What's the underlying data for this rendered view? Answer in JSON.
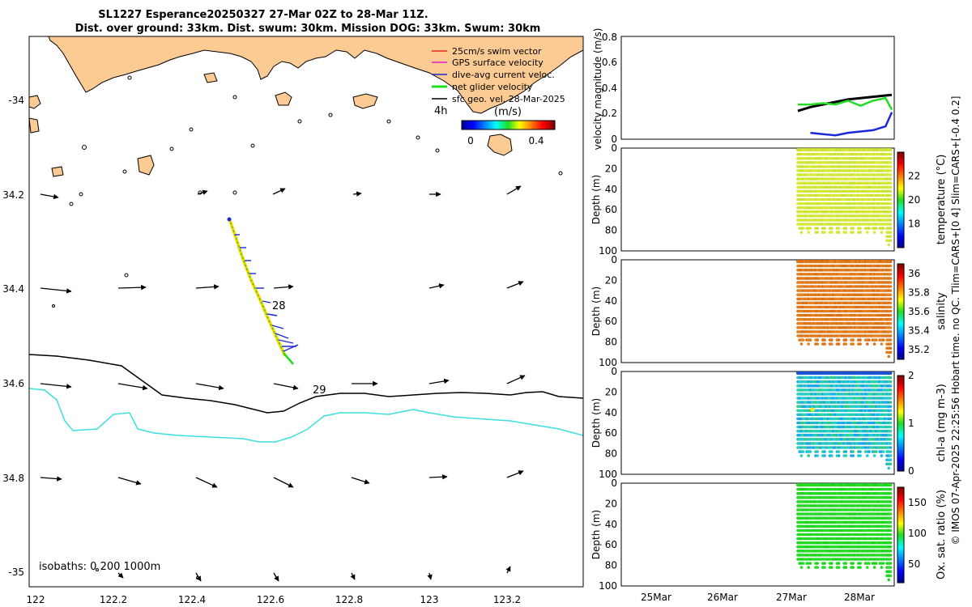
{
  "title": {
    "line1": "SL1227 Esperance20250327 27-Mar 02Z to 28-Mar 11Z.",
    "line2": "Dist. over ground: 33km. Dist. swum: 30km. Mission DOG: 33km. Swum: 30km"
  },
  "map": {
    "lon_ticks": [
      "122",
      "122.2",
      "122.4",
      "122.6",
      "122.8",
      "123",
      "123.2"
    ],
    "lat_ticks": [
      "-34",
      "34.2",
      "34.4",
      "34.6",
      "34.8",
      "-35"
    ],
    "legend": [
      {
        "label": "25cm/s swim vector",
        "color": "#e8281c"
      },
      {
        "label": "GPS surface velocity",
        "color": "#e81cc8"
      },
      {
        "label": "dive-avg current veloc.",
        "color": "#1c28d8"
      },
      {
        "label": "net glider velocity",
        "color": "#22dd22"
      },
      {
        "label": "sfc geo. vel. 28-Mar-2025",
        "color": "#000000"
      }
    ],
    "colorbar": {
      "label": "(m/s)",
      "tick_low": "0",
      "tick_high": "0.4",
      "time_label": "4h"
    },
    "day_labels": [
      "28",
      "29"
    ],
    "isobaths_label": "isobaths: 0   200  1000m",
    "colors": {
      "land": "#fccb93",
      "isobath_200": "#000000",
      "isobath_1000": "#3cdede"
    }
  },
  "panels": {
    "velocity": {
      "ylabel": "velocity magnitude (m/s)",
      "yticks": [
        "0",
        "0.2",
        "0.4",
        "0.6",
        "0.8"
      ]
    },
    "temperature": {
      "ylabel": "Depth (m)",
      "cb_label": "temperature (°C)",
      "cb_ticks": [
        "22",
        "20",
        "18"
      ]
    },
    "salinity": {
      "ylabel": "Depth (m)",
      "cb_label": "salinity",
      "cb_ticks": [
        "36",
        "35.8",
        "35.6",
        "35.4",
        "35.2"
      ]
    },
    "chla": {
      "ylabel": "Depth (m)",
      "cb_label": "chl-a (mg m-3)",
      "cb_ticks": [
        "2",
        "1",
        "0"
      ]
    },
    "oxygen": {
      "ylabel": "Depth (m)",
      "cb_label": "Ox. sat. ratio (%)",
      "cb_ticks": [
        "150",
        "100",
        "50"
      ]
    },
    "depth_ticks": [
      "0",
      "20",
      "40",
      "60",
      "80",
      "100"
    ],
    "date_ticks": [
      "25Mar",
      "26Mar",
      "27Mar",
      "28Mar"
    ]
  },
  "credit": "© IMOS 07-Apr-2025 22:25:56 Hobart time. no QC. Tlim=CARS+[0 4] Slim=CARS+[-0.4 0.2]",
  "chart_data": {
    "type": "line",
    "title": "velocity magnitude (m/s)",
    "x": [
      "27.0",
      "27.2",
      "27.4",
      "27.6",
      "27.8",
      "28.0",
      "28.2",
      "28.4",
      "28.5"
    ],
    "series": [
      {
        "name": "sfc geo. vel.",
        "color": "#000000",
        "values": [
          0.22,
          0.25,
          0.27,
          0.29,
          0.31,
          0.32,
          0.33,
          0.34,
          0.345
        ]
      },
      {
        "name": "net glider velocity",
        "color": "#22dd22",
        "values": [
          0.27,
          0.27,
          0.28,
          0.27,
          0.3,
          0.26,
          0.3,
          0.32,
          0.23
        ]
      },
      {
        "name": "dive-avg current",
        "color": "#1c28d8",
        "values": [
          null,
          0.05,
          0.04,
          0.03,
          0.05,
          0.06,
          0.07,
          0.1,
          0.21
        ]
      }
    ],
    "ylim": [
      0,
      0.8
    ],
    "xlabel": "",
    "ylabel": "velocity magnitude (m/s)"
  }
}
